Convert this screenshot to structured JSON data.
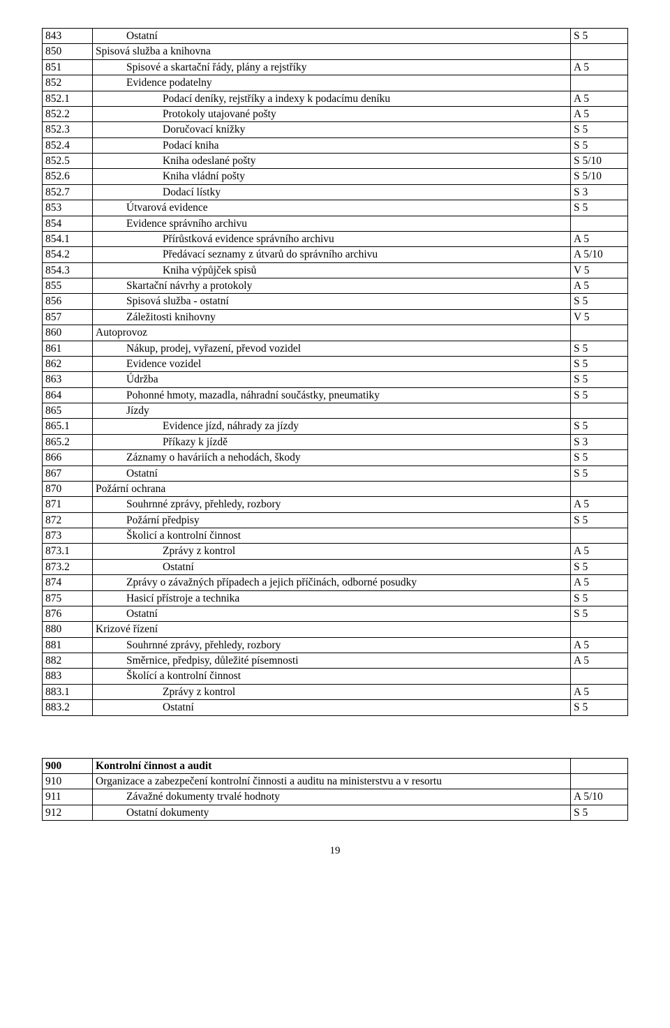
{
  "main_table": {
    "rows": [
      {
        "code": "843",
        "text": "Ostatní",
        "indent": 1,
        "ret": "S 5"
      },
      {
        "code": "850",
        "text": "Spisová služba a knihovna",
        "indent": 0,
        "ret": ""
      },
      {
        "code": "851",
        "text": "Spisové a skartační řády, plány a rejstříky",
        "indent": 1,
        "ret": "A 5"
      },
      {
        "code": "852",
        "text": "Evidence podatelny",
        "indent": 1,
        "ret": ""
      },
      {
        "code": "852.1",
        "text": "Podací deníky, rejstříky a indexy k podacímu deníku",
        "indent": 2,
        "ret": "A 5"
      },
      {
        "code": "852.2",
        "text": "Protokoly utajované pošty",
        "indent": 2,
        "ret": "A 5"
      },
      {
        "code": "852.3",
        "text": "Doručovací knížky",
        "indent": 2,
        "ret": "S 5"
      },
      {
        "code": "852.4",
        "text": "Podací kniha",
        "indent": 2,
        "ret": "S 5"
      },
      {
        "code": "852.5",
        "text": "Kniha odeslané pošty",
        "indent": 2,
        "ret": "S 5/10"
      },
      {
        "code": "852.6",
        "text": "Kniha vládní pošty",
        "indent": 2,
        "ret": "S 5/10"
      },
      {
        "code": "852.7",
        "text": "Dodací lístky",
        "indent": 2,
        "ret": "S 3"
      },
      {
        "code": "853",
        "text": "Útvarová evidence",
        "indent": 1,
        "ret": "S 5"
      },
      {
        "code": "854",
        "text": "Evidence správního archivu",
        "indent": 1,
        "ret": ""
      },
      {
        "code": "854.1",
        "text": "Přírůstková evidence správního archivu",
        "indent": 2,
        "ret": "A 5"
      },
      {
        "code": "854.2",
        "text": "Předávací seznamy z útvarů do správního archivu",
        "indent": 2,
        "ret": "A 5/10"
      },
      {
        "code": "854.3",
        "text": "Kniha výpůjček spisů",
        "indent": 2,
        "ret": "V 5"
      },
      {
        "code": "855",
        "text": "Skartační návrhy a protokoly",
        "indent": 1,
        "ret": "A 5"
      },
      {
        "code": "856",
        "text": "Spisová služba - ostatní",
        "indent": 1,
        "ret": "S 5"
      },
      {
        "code": "857",
        "text": "Záležitosti knihovny",
        "indent": 1,
        "ret": "V 5"
      },
      {
        "code": "860",
        "text": "Autoprovoz",
        "indent": 0,
        "ret": ""
      },
      {
        "code": "861",
        "text": "Nákup, prodej, vyřazení, převod vozidel",
        "indent": 1,
        "ret": "S 5"
      },
      {
        "code": "862",
        "text": "Evidence vozidel",
        "indent": 1,
        "ret": "S 5"
      },
      {
        "code": "863",
        "text": "Údržba",
        "indent": 1,
        "ret": "S 5"
      },
      {
        "code": "864",
        "text": "Pohonné hmoty, mazadla, náhradní součástky, pneumatiky",
        "indent": 1,
        "ret": "S 5"
      },
      {
        "code": "865",
        "text": "Jízdy",
        "indent": 1,
        "ret": ""
      },
      {
        "code": "865.1",
        "text": "Evidence jízd, náhrady za jízdy",
        "indent": 2,
        "ret": "S 5"
      },
      {
        "code": "865.2",
        "text": "Příkazy k jízdě",
        "indent": 2,
        "ret": "S 3"
      },
      {
        "code": "866",
        "text": "Záznamy o haváriích a nehodách, škody",
        "indent": 1,
        "ret": "S 5"
      },
      {
        "code": "867",
        "text": "Ostatní",
        "indent": 1,
        "ret": "S 5"
      },
      {
        "code": "870",
        "text": "Požární ochrana",
        "indent": 0,
        "ret": ""
      },
      {
        "code": "871",
        "text": "Souhrnné zprávy, přehledy, rozbory",
        "indent": 1,
        "ret": "A 5"
      },
      {
        "code": "872",
        "text": "Požární předpisy",
        "indent": 1,
        "ret": "S 5"
      },
      {
        "code": "873",
        "text": "Školicí a kontrolní činnost",
        "indent": 1,
        "ret": ""
      },
      {
        "code": "873.1",
        "text": "Zprávy z kontrol",
        "indent": 2,
        "ret": "A 5"
      },
      {
        "code": "873.2",
        "text": "Ostatní",
        "indent": 2,
        "ret": "S 5"
      },
      {
        "code": "874",
        "text": "Zprávy o závažných případech a jejich příčinách, odborné posudky",
        "indent": 1,
        "ret": "A 5"
      },
      {
        "code": "875",
        "text": "Hasicí přístroje a technika",
        "indent": 1,
        "ret": "S 5"
      },
      {
        "code": "876",
        "text": "Ostatní",
        "indent": 1,
        "ret": "S 5"
      },
      {
        "code": "880",
        "text": "Krizové řízení",
        "indent": 0,
        "ret": ""
      },
      {
        "code": "881",
        "text": "Souhrnné zprávy, přehledy, rozbory",
        "indent": 1,
        "ret": "A 5"
      },
      {
        "code": "882",
        "text": "Směrnice, předpisy, důležité písemnosti",
        "indent": 1,
        "ret": "A 5"
      },
      {
        "code": "883",
        "text": "Školící a kontrolní činnost",
        "indent": 1,
        "ret": ""
      },
      {
        "code": "883.1",
        "text": "Zprávy z kontrol",
        "indent": 2,
        "ret": "A 5"
      },
      {
        "code": "883.2",
        "text": "Ostatní",
        "indent": 2,
        "ret": "S 5"
      }
    ]
  },
  "second_table": {
    "rows": [
      {
        "code": "900",
        "text": "Kontrolní činnost a audit",
        "indent": 0,
        "bold": true,
        "ret": ""
      },
      {
        "code": "910",
        "text": "Organizace a zabezpečení kontrolní činnosti a auditu na ministerstvu a v resortu",
        "indent": 0,
        "ret": ""
      },
      {
        "code": "911",
        "text": "Závažné dokumenty trvalé hodnoty",
        "indent": 1,
        "ret": "A 5/10"
      },
      {
        "code": "912",
        "text": "Ostatní dokumenty",
        "indent": 1,
        "ret": "S 5"
      }
    ]
  },
  "page_number": "19"
}
